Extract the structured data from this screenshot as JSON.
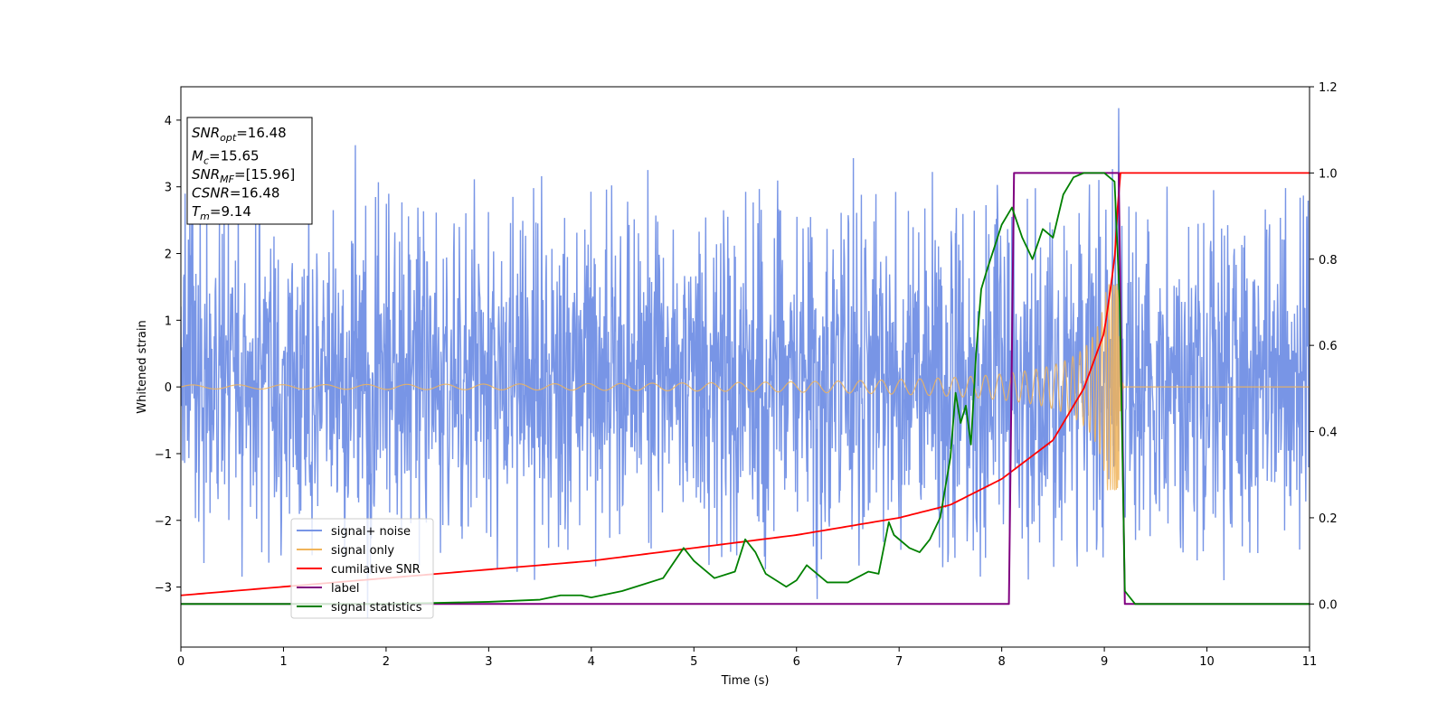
{
  "chart_data": {
    "type": "line",
    "xlabel": "Time (s)",
    "ylabel": "Whitened strain",
    "xlim": [
      0,
      11
    ],
    "ylim_left": [
      -3.9,
      4.5
    ],
    "ylim_right": [
      -0.1,
      1.2
    ],
    "x_ticks": [
      "0",
      "1",
      "2",
      "3",
      "4",
      "5",
      "6",
      "7",
      "8",
      "9",
      "10",
      "11"
    ],
    "y_ticks_left": [
      "4",
      "3",
      "2",
      "1",
      "0",
      "−1",
      "−2",
      "−3"
    ],
    "y_ticks_right": [
      "1.2",
      "1.0",
      "0.8",
      "0.6",
      "0.4",
      "0.2",
      "0.0"
    ],
    "grid": false,
    "legend_position": "lower-left",
    "annotations": [
      {
        "symbol": "SNR",
        "sub": "opt",
        "value": "=16.48"
      },
      {
        "symbol": "M",
        "sub": "c",
        "value": "=15.65"
      },
      {
        "symbol": "SNR",
        "sub": "MF",
        "value": "=[15.96]"
      },
      {
        "symbol": "CSNR",
        "sub": "",
        "value": "=16.48"
      },
      {
        "symbol": "T",
        "sub": "m",
        "value": "=9.14"
      }
    ],
    "series": [
      {
        "name": "signal+ noise",
        "color": "#7895e6",
        "axis": "left",
        "noise_band": [
          -2.0,
          2.3
        ],
        "max_peak": [
          9.14,
          4.18
        ],
        "min_peak": [
          1.82,
          -3.46
        ]
      },
      {
        "name": "signal only",
        "color": "#f0b45a",
        "axis": "left",
        "chirp": {
          "start": 0,
          "merger": 9.14,
          "end": 11,
          "amp_start": 0.03,
          "amp_peak": 1.55
        }
      },
      {
        "name": "cumilative SNR",
        "color": "#ff0000",
        "axis": "right",
        "x": [
          0,
          1,
          2,
          3,
          4,
          5,
          6,
          7,
          7.5,
          8,
          8.5,
          8.8,
          9.0,
          9.1,
          9.15,
          11
        ],
        "y": [
          0.02,
          0.04,
          0.06,
          0.08,
          0.1,
          0.13,
          0.16,
          0.2,
          0.23,
          0.29,
          0.38,
          0.5,
          0.63,
          0.8,
          1.0,
          1.0
        ]
      },
      {
        "name": "label",
        "color": "#800080",
        "axis": "right",
        "x": [
          0,
          8.07,
          8.12,
          9.14,
          9.2,
          11
        ],
        "y": [
          0.0,
          0.0,
          1.0,
          1.0,
          0.0,
          0.0
        ]
      },
      {
        "name": "signal statistics",
        "color": "#008000",
        "axis": "right",
        "x": [
          0,
          1,
          2,
          3,
          3.5,
          3.7,
          3.9,
          4.0,
          4.3,
          4.5,
          4.7,
          4.9,
          5.0,
          5.1,
          5.2,
          5.4,
          5.5,
          5.6,
          5.7,
          5.9,
          6.0,
          6.1,
          6.3,
          6.5,
          6.7,
          6.8,
          6.9,
          6.95,
          7.1,
          7.2,
          7.3,
          7.4,
          7.5,
          7.55,
          7.6,
          7.65,
          7.7,
          7.75,
          7.8,
          7.85,
          8.0,
          8.1,
          8.2,
          8.3,
          8.4,
          8.5,
          8.6,
          8.7,
          8.8,
          9.0,
          9.1,
          9.15,
          9.2,
          9.3,
          11
        ],
        "y": [
          0.0,
          0.0,
          0.0,
          0.005,
          0.01,
          0.02,
          0.02,
          0.015,
          0.03,
          0.045,
          0.06,
          0.13,
          0.1,
          0.08,
          0.06,
          0.075,
          0.15,
          0.12,
          0.07,
          0.04,
          0.055,
          0.09,
          0.05,
          0.05,
          0.075,
          0.07,
          0.19,
          0.16,
          0.13,
          0.12,
          0.15,
          0.2,
          0.34,
          0.49,
          0.42,
          0.46,
          0.37,
          0.58,
          0.73,
          0.77,
          0.88,
          0.92,
          0.85,
          0.8,
          0.87,
          0.85,
          0.95,
          0.99,
          1.0,
          1.0,
          0.98,
          0.7,
          0.03,
          0.0,
          0.0
        ]
      }
    ]
  }
}
